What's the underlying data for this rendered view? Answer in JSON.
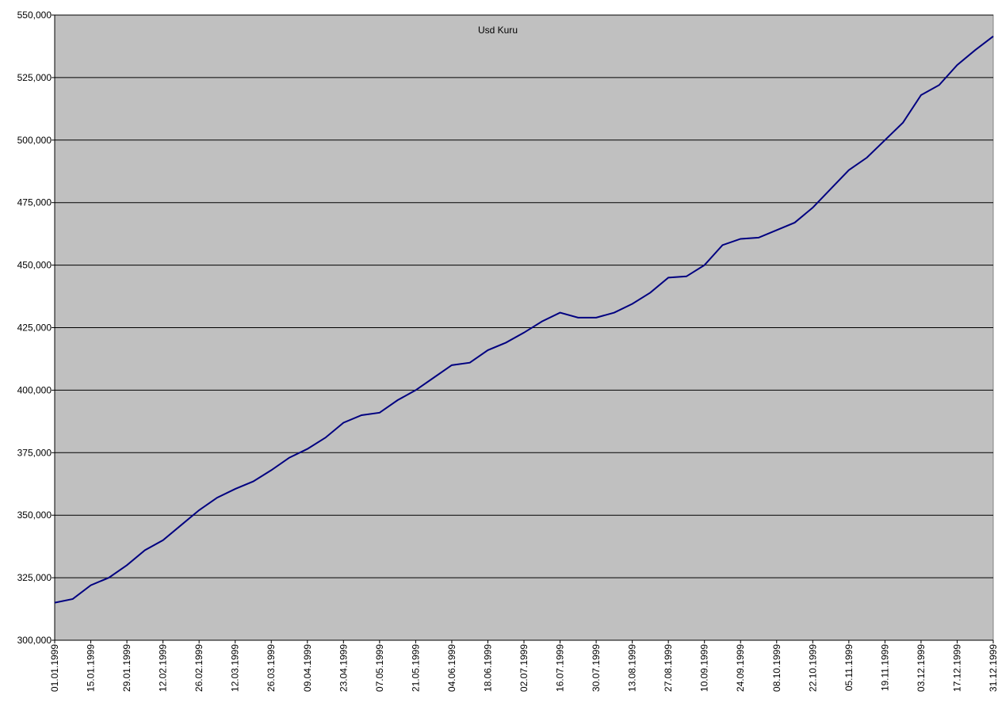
{
  "chart_data": {
    "type": "line",
    "title": "Usd Kuru",
    "x": [
      "01.01.1999",
      "08.01.1999",
      "15.01.1999",
      "22.01.1999",
      "29.01.1999",
      "05.02.1999",
      "12.02.1999",
      "19.02.1999",
      "26.02.1999",
      "05.03.1999",
      "12.03.1999",
      "19.03.1999",
      "26.03.1999",
      "02.04.1999",
      "09.04.1999",
      "16.04.1999",
      "23.04.1999",
      "30.04.1999",
      "07.05.1999",
      "14.05.1999",
      "21.05.1999",
      "28.05.1999",
      "04.06.1999",
      "11.06.1999",
      "18.06.1999",
      "25.06.1999",
      "02.07.1999",
      "09.07.1999",
      "16.07.1999",
      "23.07.1999",
      "30.07.1999",
      "06.08.1999",
      "13.08.1999",
      "20.08.1999",
      "27.08.1999",
      "03.09.1999",
      "10.09.1999",
      "17.09.1999",
      "24.09.1999",
      "01.10.1999",
      "08.10.1999",
      "15.10.1999",
      "22.10.1999",
      "29.10.1999",
      "05.11.1999",
      "12.11.1999",
      "19.11.1999",
      "26.11.1999",
      "03.12.1999",
      "10.12.1999",
      "17.12.1999",
      "24.12.1999",
      "31.12.1999"
    ],
    "series": [
      {
        "color": "#000080",
        "values": [
          315000,
          316500,
          322000,
          325000,
          330000,
          336000,
          340000,
          346000,
          352000,
          357000,
          360500,
          363500,
          368000,
          373000,
          376500,
          381000,
          387000,
          390000,
          391000,
          396000,
          400000,
          405000,
          410000,
          411000,
          416000,
          419000,
          423000,
          427500,
          431000,
          429000,
          429000,
          431000,
          434500,
          439000,
          445000,
          445500,
          450000,
          458000,
          460500,
          461000,
          464000,
          467000,
          473000,
          480500,
          488000,
          493000,
          500000,
          507000,
          518000,
          522000,
          530000,
          536000,
          541500
        ]
      }
    ],
    "xlim": [
      "01.01.1999",
      "31.12.1999"
    ],
    "xticks": [
      "01.01.1999",
      "15.01.1999",
      "29.01.1999",
      "12.02.1999",
      "26.02.1999",
      "12.03.1999",
      "26.03.1999",
      "09.04.1999",
      "23.04.1999",
      "07.05.1999",
      "21.05.1999",
      "04.06.1999",
      "18.06.1999",
      "02.07.1999",
      "16.07.1999",
      "30.07.1999",
      "13.08.1999",
      "27.08.1999",
      "10.09.1999",
      "24.09.1999",
      "08.10.1999",
      "22.10.1999",
      "05.11.1999",
      "19.11.1999",
      "03.12.1999",
      "17.12.1999",
      "31.12.1999"
    ],
    "ylim": [
      300000,
      550000
    ],
    "yticks": [
      {
        "value": 300000,
        "label": "300,000"
      },
      {
        "value": 325000,
        "label": "325,000"
      },
      {
        "value": 350000,
        "label": "350,000"
      },
      {
        "value": 375000,
        "label": "375,000"
      },
      {
        "value": 400000,
        "label": "400,000"
      },
      {
        "value": 425000,
        "label": "425,000"
      },
      {
        "value": 450000,
        "label": "450,000"
      },
      {
        "value": 475000,
        "label": "475,000"
      },
      {
        "value": 500000,
        "label": "500,000"
      },
      {
        "value": 525000,
        "label": "525,000"
      },
      {
        "value": 550000,
        "label": "550,000"
      }
    ],
    "grid": true
  }
}
